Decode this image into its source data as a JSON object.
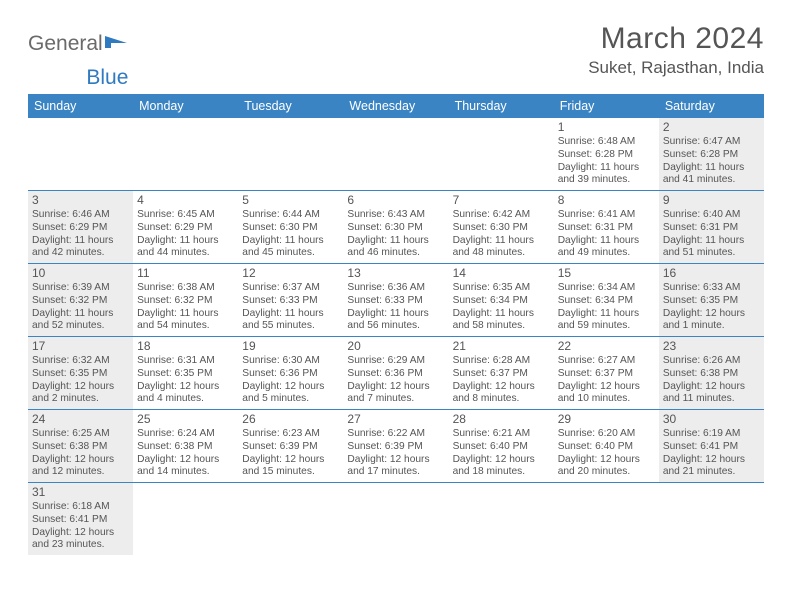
{
  "logo": {
    "word1": "General",
    "word2": "Blue"
  },
  "title": {
    "month": "March 2024",
    "location": "Suket, Rajasthan, India"
  },
  "colors": {
    "header_bg": "#3a84c4",
    "header_text": "#ffffff",
    "row_border": "#3a84c4",
    "shaded_bg": "#ededed",
    "text": "#555555",
    "logo_gray": "#6a6a6a",
    "logo_blue": "#2f7ac0"
  },
  "weekdays": [
    "Sunday",
    "Monday",
    "Tuesday",
    "Wednesday",
    "Thursday",
    "Friday",
    "Saturday"
  ],
  "weeks": [
    [
      null,
      null,
      null,
      null,
      null,
      {
        "n": "1",
        "sr": "6:48 AM",
        "ss": "6:28 PM",
        "dl": "11 hours and 39 minutes."
      },
      {
        "n": "2",
        "sr": "6:47 AM",
        "ss": "6:28 PM",
        "dl": "11 hours and 41 minutes."
      }
    ],
    [
      {
        "n": "3",
        "sr": "6:46 AM",
        "ss": "6:29 PM",
        "dl": "11 hours and 42 minutes."
      },
      {
        "n": "4",
        "sr": "6:45 AM",
        "ss": "6:29 PM",
        "dl": "11 hours and 44 minutes."
      },
      {
        "n": "5",
        "sr": "6:44 AM",
        "ss": "6:30 PM",
        "dl": "11 hours and 45 minutes."
      },
      {
        "n": "6",
        "sr": "6:43 AM",
        "ss": "6:30 PM",
        "dl": "11 hours and 46 minutes."
      },
      {
        "n": "7",
        "sr": "6:42 AM",
        "ss": "6:30 PM",
        "dl": "11 hours and 48 minutes."
      },
      {
        "n": "8",
        "sr": "6:41 AM",
        "ss": "6:31 PM",
        "dl": "11 hours and 49 minutes."
      },
      {
        "n": "9",
        "sr": "6:40 AM",
        "ss": "6:31 PM",
        "dl": "11 hours and 51 minutes."
      }
    ],
    [
      {
        "n": "10",
        "sr": "6:39 AM",
        "ss": "6:32 PM",
        "dl": "11 hours and 52 minutes."
      },
      {
        "n": "11",
        "sr": "6:38 AM",
        "ss": "6:32 PM",
        "dl": "11 hours and 54 minutes."
      },
      {
        "n": "12",
        "sr": "6:37 AM",
        "ss": "6:33 PM",
        "dl": "11 hours and 55 minutes."
      },
      {
        "n": "13",
        "sr": "6:36 AM",
        "ss": "6:33 PM",
        "dl": "11 hours and 56 minutes."
      },
      {
        "n": "14",
        "sr": "6:35 AM",
        "ss": "6:34 PM",
        "dl": "11 hours and 58 minutes."
      },
      {
        "n": "15",
        "sr": "6:34 AM",
        "ss": "6:34 PM",
        "dl": "11 hours and 59 minutes."
      },
      {
        "n": "16",
        "sr": "6:33 AM",
        "ss": "6:35 PM",
        "dl": "12 hours and 1 minute."
      }
    ],
    [
      {
        "n": "17",
        "sr": "6:32 AM",
        "ss": "6:35 PM",
        "dl": "12 hours and 2 minutes."
      },
      {
        "n": "18",
        "sr": "6:31 AM",
        "ss": "6:35 PM",
        "dl": "12 hours and 4 minutes."
      },
      {
        "n": "19",
        "sr": "6:30 AM",
        "ss": "6:36 PM",
        "dl": "12 hours and 5 minutes."
      },
      {
        "n": "20",
        "sr": "6:29 AM",
        "ss": "6:36 PM",
        "dl": "12 hours and 7 minutes."
      },
      {
        "n": "21",
        "sr": "6:28 AM",
        "ss": "6:37 PM",
        "dl": "12 hours and 8 minutes."
      },
      {
        "n": "22",
        "sr": "6:27 AM",
        "ss": "6:37 PM",
        "dl": "12 hours and 10 minutes."
      },
      {
        "n": "23",
        "sr": "6:26 AM",
        "ss": "6:38 PM",
        "dl": "12 hours and 11 minutes."
      }
    ],
    [
      {
        "n": "24",
        "sr": "6:25 AM",
        "ss": "6:38 PM",
        "dl": "12 hours and 12 minutes."
      },
      {
        "n": "25",
        "sr": "6:24 AM",
        "ss": "6:38 PM",
        "dl": "12 hours and 14 minutes."
      },
      {
        "n": "26",
        "sr": "6:23 AM",
        "ss": "6:39 PM",
        "dl": "12 hours and 15 minutes."
      },
      {
        "n": "27",
        "sr": "6:22 AM",
        "ss": "6:39 PM",
        "dl": "12 hours and 17 minutes."
      },
      {
        "n": "28",
        "sr": "6:21 AM",
        "ss": "6:40 PM",
        "dl": "12 hours and 18 minutes."
      },
      {
        "n": "29",
        "sr": "6:20 AM",
        "ss": "6:40 PM",
        "dl": "12 hours and 20 minutes."
      },
      {
        "n": "30",
        "sr": "6:19 AM",
        "ss": "6:41 PM",
        "dl": "12 hours and 21 minutes."
      }
    ],
    [
      {
        "n": "31",
        "sr": "6:18 AM",
        "ss": "6:41 PM",
        "dl": "12 hours and 23 minutes."
      },
      null,
      null,
      null,
      null,
      null,
      null
    ]
  ],
  "labels": {
    "sunrise": "Sunrise:",
    "sunset": "Sunset:",
    "daylight": "Daylight:"
  }
}
